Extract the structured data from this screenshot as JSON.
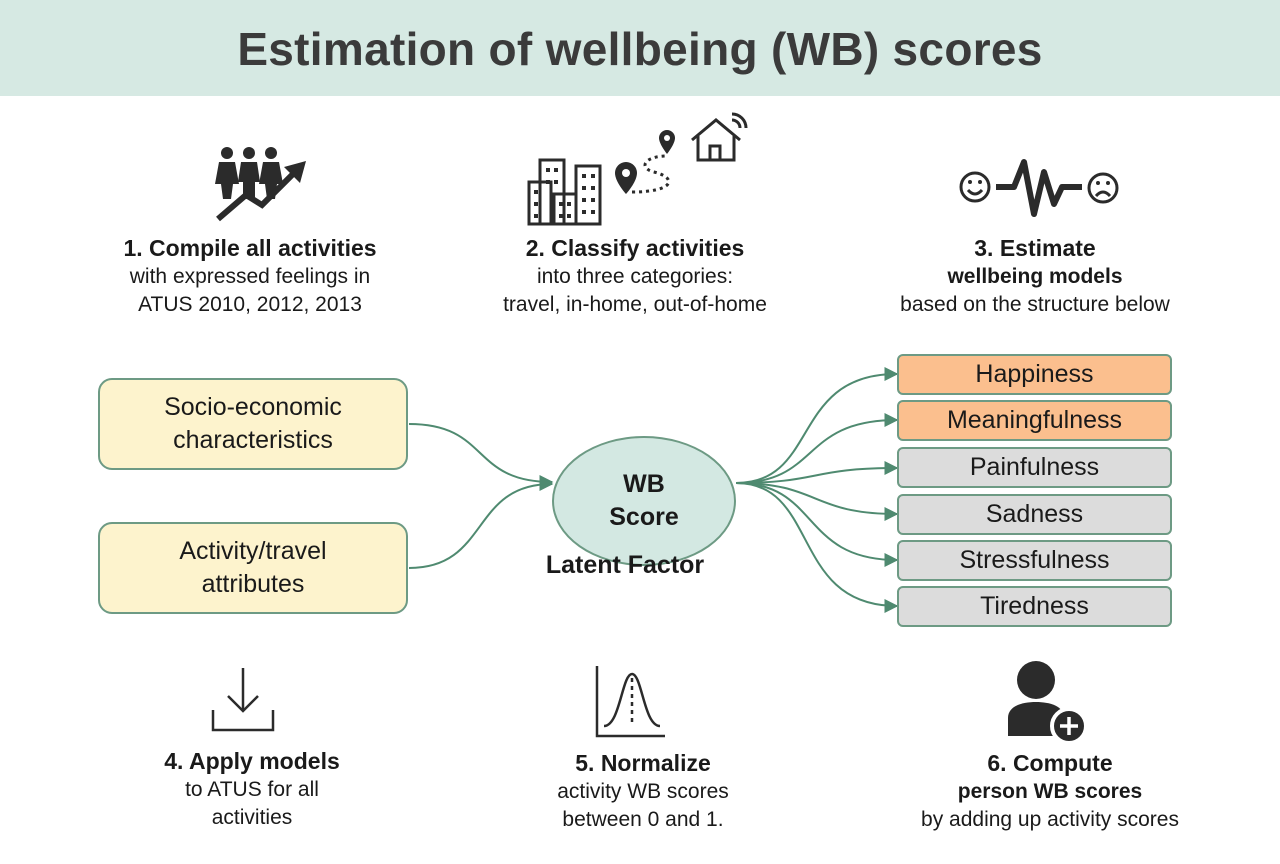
{
  "title": "Estimation of wellbeing (WB) scores",
  "steps": [
    {
      "title": "1. Compile all activities",
      "lines": [
        "with expressed feelings in",
        "ATUS 2010, 2012, 2013"
      ]
    },
    {
      "title": "2. Classify activities",
      "lines": [
        "into three categories:",
        "travel, in-home, out-of-home"
      ]
    },
    {
      "title": "3. Estimate",
      "subtitle": "wellbeing models",
      "lines": [
        "based on the structure below"
      ]
    },
    {
      "title": "4. Apply models",
      "lines": [
        "to ATUS for all",
        "activities"
      ]
    },
    {
      "title": "5. Normalize",
      "lines": [
        "activity WB scores",
        "between 0 and 1."
      ]
    },
    {
      "title": "6. Compute",
      "subtitle": "person WB scores",
      "lines": [
        "by adding up activity scores"
      ]
    }
  ],
  "inputs": [
    {
      "lines": [
        "Socio-economic",
        "characteristics"
      ]
    },
    {
      "lines": [
        "Activity/travel",
        "attributes"
      ]
    }
  ],
  "center": {
    "lines": [
      "WB",
      "Score"
    ],
    "caption": "Latent Factor"
  },
  "outputs": [
    {
      "label": "Happiness",
      "highlight": true
    },
    {
      "label": "Meaningfulness",
      "highlight": true
    },
    {
      "label": "Painfulness",
      "highlight": false
    },
    {
      "label": "Sadness",
      "highlight": false
    },
    {
      "label": "Stressfulness",
      "highlight": false
    },
    {
      "label": "Tiredness",
      "highlight": false
    }
  ],
  "colors": {
    "banner": "#d6e9e3",
    "input_fill": "#fdf3cd",
    "center_fill": "#d3e8e2",
    "highlight_fill": "#fbbf8e",
    "neutral_fill": "#dcdcdc",
    "connector": "#4f8a70"
  },
  "icons": [
    "people-growth-icon",
    "city-route-home-icon",
    "mood-pulse-icon",
    "download-icon",
    "bell-curve-icon",
    "add-person-icon"
  ]
}
